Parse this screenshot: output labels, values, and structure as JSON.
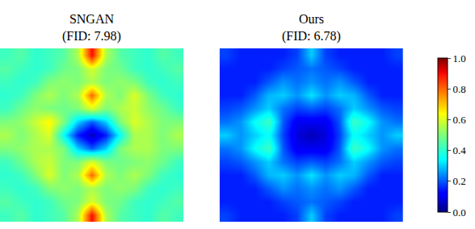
{
  "chart_data": [
    {
      "type": "heatmap",
      "title": "SNGAN",
      "subtitle": "(FID: 7.98)",
      "color": "jet",
      "tick_labels": false,
      "zlim": [
        0,
        1
      ],
      "cells": [
        [
          0.42,
          0.45,
          0.4,
          0.42,
          0.45,
          0.55,
          0.9,
          0.55,
          0.45,
          0.42,
          0.4,
          0.45,
          0.42
        ],
        [
          0.45,
          0.42,
          0.4,
          0.42,
          0.48,
          0.5,
          0.6,
          0.5,
          0.48,
          0.42,
          0.4,
          0.42,
          0.45
        ],
        [
          0.42,
          0.4,
          0.42,
          0.5,
          0.52,
          0.5,
          0.55,
          0.5,
          0.52,
          0.5,
          0.42,
          0.4,
          0.42
        ],
        [
          0.4,
          0.42,
          0.5,
          0.55,
          0.5,
          0.55,
          0.8,
          0.55,
          0.5,
          0.6,
          0.5,
          0.42,
          0.4
        ],
        [
          0.42,
          0.48,
          0.52,
          0.5,
          0.48,
          0.5,
          0.6,
          0.5,
          0.55,
          0.58,
          0.52,
          0.48,
          0.42
        ],
        [
          0.5,
          0.52,
          0.58,
          0.65,
          0.5,
          0.3,
          0.2,
          0.3,
          0.5,
          0.6,
          0.55,
          0.5,
          0.5
        ],
        [
          0.55,
          0.5,
          0.55,
          0.6,
          0.35,
          0.15,
          0.05,
          0.15,
          0.35,
          0.55,
          0.55,
          0.5,
          0.55
        ],
        [
          0.5,
          0.52,
          0.55,
          0.55,
          0.5,
          0.3,
          0.2,
          0.3,
          0.5,
          0.55,
          0.55,
          0.5,
          0.5
        ],
        [
          0.42,
          0.48,
          0.55,
          0.58,
          0.5,
          0.5,
          0.6,
          0.5,
          0.48,
          0.5,
          0.52,
          0.48,
          0.42
        ],
        [
          0.4,
          0.42,
          0.5,
          0.6,
          0.5,
          0.55,
          0.8,
          0.55,
          0.5,
          0.55,
          0.5,
          0.42,
          0.4
        ],
        [
          0.42,
          0.4,
          0.42,
          0.5,
          0.52,
          0.5,
          0.55,
          0.5,
          0.52,
          0.5,
          0.42,
          0.4,
          0.42
        ],
        [
          0.45,
          0.42,
          0.4,
          0.42,
          0.48,
          0.5,
          0.6,
          0.5,
          0.48,
          0.42,
          0.4,
          0.42,
          0.45
        ],
        [
          0.42,
          0.45,
          0.4,
          0.42,
          0.45,
          0.55,
          0.9,
          0.55,
          0.45,
          0.42,
          0.4,
          0.45,
          0.42
        ]
      ]
    },
    {
      "type": "heatmap",
      "title": "Ours",
      "subtitle": "(FID: 6.78)",
      "color": "jet",
      "tick_labels": false,
      "zlim": [
        0,
        1
      ],
      "colorbar_ticks": [
        {
          "value": 0,
          "label": "0.0"
        },
        0.2,
        0.4,
        0.6,
        0.8,
        {
          "value": 1,
          "label": "1.0"
        }
      ],
      "cells": [
        [
          0.18,
          0.15,
          0.15,
          0.15,
          0.15,
          0.18,
          0.3,
          0.18,
          0.15,
          0.15,
          0.15,
          0.15,
          0.18
        ],
        [
          0.15,
          0.15,
          0.15,
          0.15,
          0.18,
          0.2,
          0.22,
          0.2,
          0.18,
          0.15,
          0.15,
          0.15,
          0.15
        ],
        [
          0.15,
          0.15,
          0.15,
          0.2,
          0.25,
          0.22,
          0.25,
          0.22,
          0.25,
          0.2,
          0.15,
          0.15,
          0.15
        ],
        [
          0.15,
          0.15,
          0.2,
          0.28,
          0.3,
          0.25,
          0.32,
          0.25,
          0.3,
          0.28,
          0.2,
          0.15,
          0.15
        ],
        [
          0.18,
          0.2,
          0.25,
          0.3,
          0.22,
          0.18,
          0.2,
          0.18,
          0.22,
          0.3,
          0.25,
          0.2,
          0.18
        ],
        [
          0.22,
          0.25,
          0.35,
          0.42,
          0.2,
          0.1,
          0.1,
          0.1,
          0.2,
          0.42,
          0.35,
          0.25,
          0.22
        ],
        [
          0.3,
          0.25,
          0.3,
          0.35,
          0.18,
          0.08,
          0.05,
          0.08,
          0.18,
          0.35,
          0.3,
          0.25,
          0.3
        ],
        [
          0.22,
          0.25,
          0.35,
          0.42,
          0.2,
          0.1,
          0.1,
          0.1,
          0.2,
          0.42,
          0.35,
          0.25,
          0.22
        ],
        [
          0.18,
          0.2,
          0.25,
          0.3,
          0.22,
          0.18,
          0.2,
          0.18,
          0.22,
          0.3,
          0.25,
          0.2,
          0.18
        ],
        [
          0.15,
          0.15,
          0.2,
          0.28,
          0.3,
          0.25,
          0.32,
          0.25,
          0.3,
          0.28,
          0.2,
          0.15,
          0.15
        ],
        [
          0.15,
          0.15,
          0.15,
          0.2,
          0.25,
          0.22,
          0.25,
          0.22,
          0.25,
          0.2,
          0.15,
          0.15,
          0.15
        ],
        [
          0.15,
          0.15,
          0.15,
          0.15,
          0.18,
          0.2,
          0.22,
          0.2,
          0.18,
          0.15,
          0.15,
          0.15,
          0.15
        ],
        [
          0.18,
          0.15,
          0.15,
          0.15,
          0.15,
          0.18,
          0.3,
          0.18,
          0.15,
          0.15,
          0.15,
          0.15,
          0.18
        ]
      ]
    }
  ]
}
